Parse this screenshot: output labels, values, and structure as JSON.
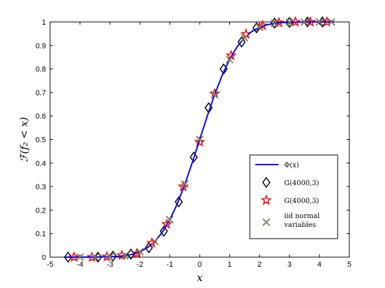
{
  "chart_data": {
    "type": "line",
    "title": "",
    "xlabel": "x",
    "ylabel": "ℱ(f₂ < x)",
    "xlim": [
      -5,
      5
    ],
    "ylim": [
      0,
      1
    ],
    "xticks": [
      -5,
      -4,
      -3,
      -2,
      -1,
      0,
      1,
      2,
      3,
      4,
      5
    ],
    "yticks": [
      0,
      0.1,
      0.2,
      0.3,
      0.4,
      0.5,
      0.6,
      0.7,
      0.8,
      0.9,
      1
    ],
    "grid": false,
    "legend_position": "bottom-right",
    "series": [
      {
        "name": "Φ(x)",
        "style": "line",
        "color": "#0000ff",
        "x": [
          -4.5,
          -4.0,
          -3.5,
          -3.0,
          -2.75,
          -2.5,
          -2.25,
          -2.0,
          -1.75,
          -1.5,
          -1.25,
          -1.0,
          -0.75,
          -0.5,
          -0.25,
          0.0,
          0.25,
          0.5,
          0.75,
          1.0,
          1.25,
          1.5,
          1.75,
          2.0,
          2.25,
          2.5,
          2.75,
          3.0,
          3.5,
          4.0,
          4.5
        ],
        "y": [
          0.0,
          0.0,
          0.0002,
          0.0013,
          0.003,
          0.0062,
          0.0122,
          0.0228,
          0.0401,
          0.0668,
          0.1056,
          0.1587,
          0.2266,
          0.3085,
          0.4013,
          0.5,
          0.5987,
          0.6915,
          0.7734,
          0.8413,
          0.8944,
          0.9332,
          0.9599,
          0.9772,
          0.9878,
          0.9938,
          0.997,
          0.9987,
          0.9998,
          1.0,
          1.0
        ]
      },
      {
        "name": "G(4000,3)",
        "style": "marker",
        "marker": "diamond",
        "color": "#000000",
        "x": [
          -4.4,
          -3.4,
          -2.9,
          -2.3,
          -1.7,
          -1.2,
          -0.7,
          -0.2,
          0.3,
          0.8,
          1.4,
          1.9,
          2.5,
          3.0,
          3.6,
          4.1
        ],
        "y": [
          0.0,
          0.0,
          0.004,
          0.013,
          0.04,
          0.11,
          0.235,
          0.425,
          0.635,
          0.8,
          0.915,
          0.975,
          0.995,
          0.998,
          1.0,
          1.0
        ]
      },
      {
        "name": "G(4000,3)",
        "style": "marker",
        "marker": "star",
        "color": "#ff0000",
        "x": [
          -4.2,
          -3.6,
          -3.1,
          -2.6,
          -2.1,
          -1.6,
          -1.1,
          -0.55,
          0.0,
          0.5,
          1.05,
          1.55,
          2.1,
          2.65,
          3.2,
          3.7,
          4.25
        ],
        "y": [
          0.0,
          0.0,
          0.002,
          0.008,
          0.015,
          0.06,
          0.14,
          0.3,
          0.49,
          0.695,
          0.857,
          0.948,
          0.985,
          0.997,
          1.0,
          1.0,
          1.0
        ]
      },
      {
        "name": "iid normal variables",
        "style": "marker",
        "marker": "x",
        "color": "#7a7a55",
        "x": [
          -4.0,
          -3.5,
          -3.0,
          -2.5,
          -2.0,
          -1.5,
          -1.0,
          -0.5,
          0.0,
          0.5,
          1.0,
          1.5,
          2.0,
          2.5,
          3.0,
          3.5,
          4.0,
          4.4
        ],
        "y": [
          0.0,
          0.0,
          0.001,
          0.006,
          0.023,
          0.067,
          0.16,
          0.31,
          0.5,
          0.69,
          0.84,
          0.933,
          0.977,
          0.994,
          0.999,
          1.0,
          1.0,
          1.0
        ]
      }
    ],
    "legend": [
      {
        "label": "Φ(x)"
      },
      {
        "label": "G(4000,3)"
      },
      {
        "label": "G(4000,3)"
      },
      {
        "label": "iid normal",
        "label2": "variables"
      }
    ]
  }
}
